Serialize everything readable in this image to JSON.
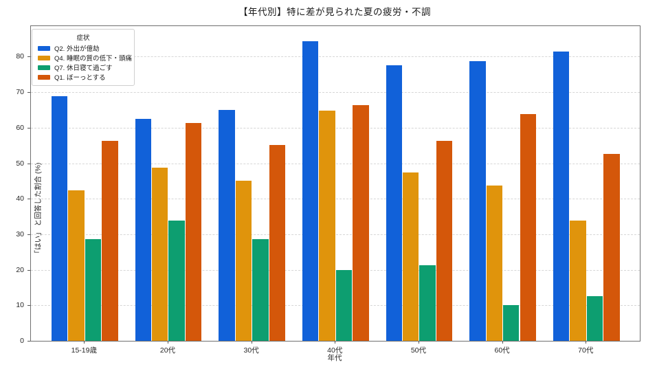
{
  "chart": {
    "title": "【年代別】特に差が見られた夏の疲労・不調",
    "xlabel": "年代",
    "ylabel": "「はい」 と回答した割合 (%)",
    "legend_title": "症状"
  },
  "chart_data": {
    "type": "bar",
    "title": "【年代別】特に差が見られた夏の疲労・不調",
    "xlabel": "年代",
    "ylabel": "「はい」 と回答した割合 (%)",
    "legend_title": "症状",
    "legend_position": "upper-left",
    "grid": "horizontal-dashed",
    "ylim": [
      0,
      88.6
    ],
    "yticks": [
      0,
      10,
      20,
      30,
      40,
      50,
      60,
      70,
      80
    ],
    "categories": [
      "15-19歳",
      "20代",
      "30代",
      "40代",
      "50代",
      "60代",
      "70代"
    ],
    "series": [
      {
        "name": "Q2. 外出が億劫",
        "color": "#1161d9",
        "values": [
          68.9,
          62.4,
          65.0,
          84.3,
          77.5,
          78.8,
          81.5
        ]
      },
      {
        "name": "Q4. 睡眠の質の低下・頭痛",
        "color": "#e0940c",
        "values": [
          42.4,
          48.8,
          45.1,
          64.9,
          47.4,
          43.7,
          33.8
        ]
      },
      {
        "name": "Q7. 休日寝て過ごす",
        "color": "#0d9e70",
        "values": [
          28.7,
          33.8,
          28.7,
          20.0,
          21.2,
          10.0,
          12.5
        ]
      },
      {
        "name": "Q1. ぼーっとする",
        "color": "#d4570a",
        "values": [
          56.3,
          61.3,
          55.1,
          66.3,
          56.3,
          63.8,
          52.6
        ]
      }
    ]
  }
}
